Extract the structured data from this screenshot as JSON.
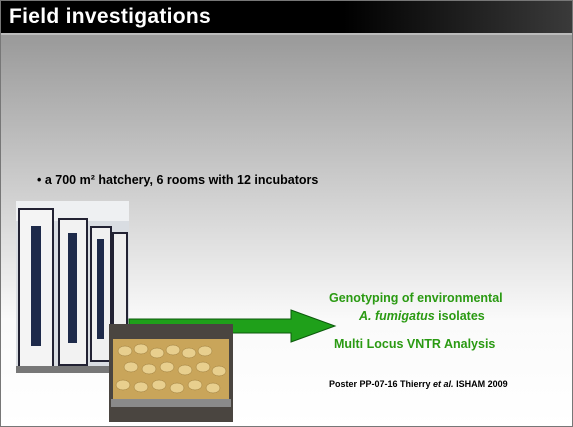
{
  "title": "Field investigations",
  "bullet": "• a 700 m² hatchery, 6 rooms with 12 incubators",
  "green_text": {
    "line1": "Genotyping of environmental",
    "species": "A. fumigatus",
    "line2_rest": " isolates",
    "line3": "Multi Locus VNTR Analysis"
  },
  "poster": {
    "before": "Poster PP-07-16 Thierry ",
    "italic": "et al.",
    "after": " ISHAM 2009"
  }
}
